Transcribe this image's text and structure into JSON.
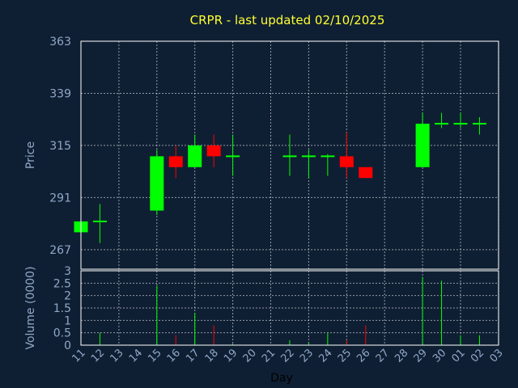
{
  "chart_data": [
    {
      "type": "candlestick",
      "title": "CRPR - last updated 02/10/2025",
      "ylabel": "Price",
      "yticks": [
        267,
        291,
        315,
        339,
        363
      ],
      "ylim": [
        258,
        363
      ],
      "grid": true,
      "colors": {
        "up": "#00ff00",
        "down": "#ff0000"
      },
      "candles": [
        {
          "day": "11",
          "open": 275,
          "high": 280,
          "low": 275,
          "close": 280
        },
        {
          "day": "12",
          "open": 280,
          "high": 288,
          "low": 270,
          "close": 280
        },
        {
          "day": "15",
          "open": 285,
          "high": 313,
          "low": 283,
          "close": 310
        },
        {
          "day": "16",
          "open": 310,
          "high": 315,
          "low": 300,
          "close": 305
        },
        {
          "day": "17",
          "open": 305,
          "high": 320,
          "low": 305,
          "close": 315
        },
        {
          "day": "18",
          "open": 315,
          "high": 320,
          "low": 305,
          "close": 310
        },
        {
          "day": "19",
          "open": 310,
          "high": 320,
          "low": 301,
          "close": 310
        },
        {
          "day": "22",
          "open": 310,
          "high": 320,
          "low": 301,
          "close": 310
        },
        {
          "day": "23",
          "open": 310,
          "high": 313,
          "low": 300,
          "close": 310
        },
        {
          "day": "24",
          "open": 310,
          "high": 311,
          "low": 301,
          "close": 310
        },
        {
          "day": "25",
          "open": 310,
          "high": 321,
          "low": 300,
          "close": 305
        },
        {
          "day": "26",
          "open": 305,
          "high": 305,
          "low": 300,
          "close": 300
        },
        {
          "day": "29",
          "open": 305,
          "high": 330,
          "low": 305,
          "close": 325
        },
        {
          "day": "30",
          "open": 325,
          "high": 330,
          "low": 323,
          "close": 325
        },
        {
          "day": "01",
          "open": 325,
          "high": 330,
          "low": 323,
          "close": 325
        },
        {
          "day": "02",
          "open": 325,
          "high": 328,
          "low": 320,
          "close": 325
        }
      ]
    },
    {
      "type": "bar",
      "ylabel": "Volume (0000)",
      "xlabel": "Day",
      "yticks": [
        0,
        0.5,
        1,
        1.5,
        2,
        2.5,
        3
      ],
      "ylim": [
        0,
        3
      ],
      "grid": true,
      "x_labels": [
        "11",
        "12",
        "13",
        "14",
        "15",
        "16",
        "17",
        "18",
        "19",
        "20",
        "21",
        "22",
        "23",
        "24",
        "25",
        "26",
        "27",
        "28",
        "29",
        "30",
        "01",
        "02",
        "03"
      ],
      "volumes": [
        {
          "day": "11",
          "value": 0.0,
          "direction": "up"
        },
        {
          "day": "12",
          "value": 0.5,
          "direction": "up"
        },
        {
          "day": "15",
          "value": 2.4,
          "direction": "up"
        },
        {
          "day": "16",
          "value": 0.4,
          "direction": "down"
        },
        {
          "day": "17",
          "value": 1.3,
          "direction": "up"
        },
        {
          "day": "18",
          "value": 0.8,
          "direction": "down"
        },
        {
          "day": "19",
          "value": 0.05,
          "direction": "up"
        },
        {
          "day": "22",
          "value": 0.2,
          "direction": "up"
        },
        {
          "day": "23",
          "value": 0.1,
          "direction": "up"
        },
        {
          "day": "24",
          "value": 0.5,
          "direction": "up"
        },
        {
          "day": "25",
          "value": 0.2,
          "direction": "down"
        },
        {
          "day": "26",
          "value": 0.8,
          "direction": "down"
        },
        {
          "day": "29",
          "value": 2.75,
          "direction": "up"
        },
        {
          "day": "30",
          "value": 2.6,
          "direction": "up"
        },
        {
          "day": "01",
          "value": 0.4,
          "direction": "up"
        },
        {
          "day": "02",
          "value": 0.4,
          "direction": "up"
        }
      ]
    }
  ]
}
